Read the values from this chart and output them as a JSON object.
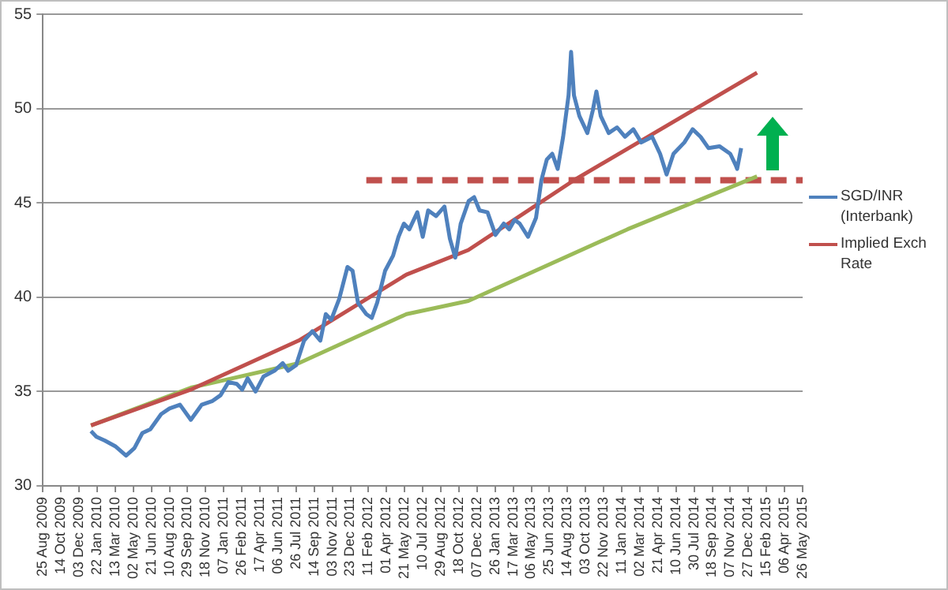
{
  "chart_data": {
    "type": "line",
    "xlim": [
      "2009-08-25",
      "2015-05-26"
    ],
    "xticks": [
      {
        "value": "2009-08-25",
        "label": "25 Aug 2009"
      },
      {
        "value": "2009-10-14",
        "label": "14 Oct 2009"
      },
      {
        "value": "2009-12-03",
        "label": "03 Dec 2009"
      },
      {
        "value": "2010-01-22",
        "label": "22 Jan 2010"
      },
      {
        "value": "2010-03-13",
        "label": "13 Mar 2010"
      },
      {
        "value": "2010-05-02",
        "label": "02 May 2010"
      },
      {
        "value": "2010-06-21",
        "label": "21 Jun 2010"
      },
      {
        "value": "2010-08-10",
        "label": "10 Aug 2010"
      },
      {
        "value": "2010-09-29",
        "label": "29 Sep 2010"
      },
      {
        "value": "2010-11-18",
        "label": "18 Nov 2010"
      },
      {
        "value": "2011-01-07",
        "label": "07 Jan 2011"
      },
      {
        "value": "2011-02-26",
        "label": "26 Feb 2011"
      },
      {
        "value": "2011-04-17",
        "label": "17 Apr 2011"
      },
      {
        "value": "2011-06-06",
        "label": "06 Jun 2011"
      },
      {
        "value": "2011-07-26",
        "label": "26 Jul 2011"
      },
      {
        "value": "2011-09-14",
        "label": "14 Sep 2011"
      },
      {
        "value": "2011-11-03",
        "label": "03 Nov 2011"
      },
      {
        "value": "2011-12-23",
        "label": "23 Dec 2011"
      },
      {
        "value": "2012-02-11",
        "label": "11 Feb 2012"
      },
      {
        "value": "2012-04-01",
        "label": "01 Apr 2012"
      },
      {
        "value": "2012-05-21",
        "label": "21 May 2012"
      },
      {
        "value": "2012-07-10",
        "label": "10 Jul 2012"
      },
      {
        "value": "2012-08-29",
        "label": "29 Aug 2012"
      },
      {
        "value": "2012-10-18",
        "label": "18 Oct 2012"
      },
      {
        "value": "2012-12-07",
        "label": "07 Dec 2012"
      },
      {
        "value": "2013-01-26",
        "label": "26 Jan 2013"
      },
      {
        "value": "2013-03-17",
        "label": "17 Mar 2013"
      },
      {
        "value": "2013-05-06",
        "label": "06 May 2013"
      },
      {
        "value": "2013-06-25",
        "label": "25 Jun 2013"
      },
      {
        "value": "2013-08-14",
        "label": "14 Aug 2013"
      },
      {
        "value": "2013-10-03",
        "label": "03 Oct 2013"
      },
      {
        "value": "2013-11-22",
        "label": "22 Nov 2013"
      },
      {
        "value": "2014-01-11",
        "label": "11 Jan 2014"
      },
      {
        "value": "2014-03-02",
        "label": "02 Mar 2014"
      },
      {
        "value": "2014-04-21",
        "label": "21 Apr 2014"
      },
      {
        "value": "2014-06-10",
        "label": "10 Jun 2014"
      },
      {
        "value": "2014-07-30",
        "label": "30 Jul 2014"
      },
      {
        "value": "2014-09-18",
        "label": "18 Sep 2014"
      },
      {
        "value": "2014-11-07",
        "label": "07 Nov 2014"
      },
      {
        "value": "2014-12-27",
        "label": "27 Dec 2014"
      },
      {
        "value": "2015-02-15",
        "label": "15 Feb 2015"
      },
      {
        "value": "2015-04-06",
        "label": "06 Apr 2015"
      },
      {
        "value": "2015-05-26",
        "label": "26 May 2015"
      }
    ],
    "ylim": [
      30,
      55
    ],
    "yticks": [
      30,
      35,
      40,
      45,
      50,
      55
    ],
    "grid": "y",
    "legend": "right",
    "series": [
      {
        "name": "SGD/INR (Interbank)",
        "color": "#4f81bd",
        "type": "line",
        "x": [
          "2010-01-05",
          "2010-01-20",
          "2010-02-12",
          "2010-03-13",
          "2010-04-12",
          "2010-05-05",
          "2010-05-27",
          "2010-06-18",
          "2010-07-18",
          "2010-08-10",
          "2010-09-08",
          "2010-10-08",
          "2010-11-07",
          "2010-12-07",
          "2010-12-29",
          "2011-01-20",
          "2011-02-12",
          "2011-02-27",
          "2011-03-14",
          "2011-04-05",
          "2011-04-27",
          "2011-05-27",
          "2011-06-19",
          "2011-07-04",
          "2011-07-26",
          "2011-08-17",
          "2011-09-09",
          "2011-10-01",
          "2011-10-16",
          "2011-10-31",
          "2011-11-22",
          "2011-12-15",
          "2011-12-29",
          "2012-01-13",
          "2012-02-05",
          "2012-02-20",
          "2012-03-06",
          "2012-03-28",
          "2012-04-19",
          "2012-05-04",
          "2012-05-19",
          "2012-06-03",
          "2012-06-25",
          "2012-07-10",
          "2012-07-25",
          "2012-08-16",
          "2012-09-08",
          "2012-09-23",
          "2012-10-08",
          "2012-10-23",
          "2012-11-14",
          "2012-11-29",
          "2012-12-14",
          "2013-01-05",
          "2013-01-27",
          "2013-02-19",
          "2013-03-06",
          "2013-03-21",
          "2013-04-04",
          "2013-04-27",
          "2013-05-19",
          "2013-06-03",
          "2013-06-18",
          "2013-07-03",
          "2013-07-18",
          "2013-08-02",
          "2013-08-17",
          "2013-08-24",
          "2013-09-01",
          "2013-09-16",
          "2013-10-08",
          "2013-10-23",
          "2013-11-02",
          "2013-11-14",
          "2013-12-06",
          "2013-12-29",
          "2014-01-20",
          "2014-02-12",
          "2014-03-06",
          "2014-04-05",
          "2014-04-27",
          "2014-05-15",
          "2014-06-03",
          "2014-07-03",
          "2014-07-26",
          "2014-08-17",
          "2014-09-08",
          "2014-10-08",
          "2014-11-07",
          "2014-11-22",
          "2014-11-26",
          "2014-12-07"
        ],
        "values": [
          32.9,
          32.6,
          32.4,
          32.1,
          31.6,
          32.0,
          32.8,
          33.0,
          33.8,
          34.1,
          34.3,
          33.5,
          34.3,
          34.5,
          34.8,
          35.5,
          35.4,
          35.1,
          35.7,
          35.0,
          35.8,
          36.1,
          36.5,
          36.1,
          36.4,
          37.7,
          38.2,
          37.7,
          39.1,
          38.8,
          39.9,
          41.6,
          41.4,
          39.7,
          39.1,
          38.9,
          39.7,
          41.4,
          42.2,
          43.2,
          43.9,
          43.6,
          44.5,
          43.2,
          44.6,
          44.3,
          44.8,
          43.1,
          42.1,
          43.9,
          45.1,
          45.3,
          44.6,
          44.5,
          43.3,
          43.9,
          43.6,
          44.1,
          43.9,
          43.2,
          44.2,
          46.2,
          47.3,
          47.6,
          46.8,
          48.5,
          50.7,
          53.0,
          50.7,
          49.6,
          48.7,
          49.9,
          50.9,
          49.6,
          48.7,
          49.0,
          48.5,
          48.9,
          48.2,
          48.5,
          47.6,
          46.5,
          47.6,
          48.2,
          48.9,
          48.5,
          47.9,
          48.0,
          47.6,
          47.0,
          46.8,
          47.9
        ]
      },
      {
        "name": "Implied Exch Rate",
        "color": "#c0504d",
        "type": "line",
        "x": [
          "2010-01-05",
          "2010-10-08",
          "2011-08-02",
          "2012-05-26",
          "2012-11-13",
          "2013-09-01",
          "2015-01-20"
        ],
        "values": [
          33.2,
          35.1,
          37.7,
          41.2,
          42.5,
          46.2,
          51.9
        ]
      },
      {
        "color": "#9bbb59",
        "type": "line",
        "x": [
          "2010-01-05",
          "2010-10-08",
          "2011-08-02",
          "2012-05-26",
          "2012-11-13",
          "2014-01-27",
          "2015-01-20"
        ],
        "values": [
          33.2,
          35.2,
          36.5,
          39.1,
          39.8,
          43.6,
          46.4
        ]
      },
      {
        "color": "#c0504d",
        "type": "line",
        "line_style": "dashed",
        "x": [
          "2012-02-05",
          "2015-05-26"
        ],
        "values": [
          46.2,
          46.2
        ]
      }
    ]
  }
}
